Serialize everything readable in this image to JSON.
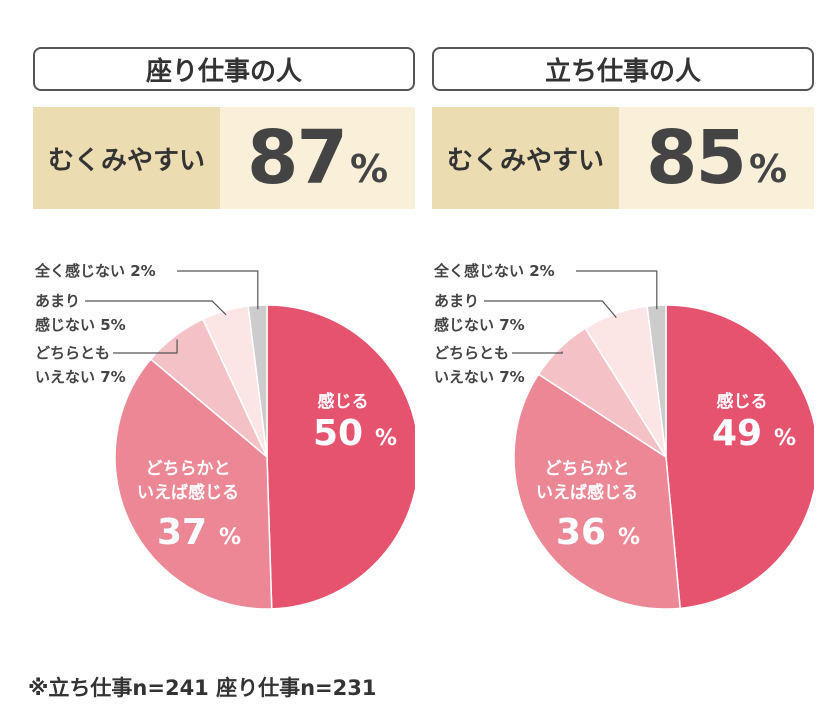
{
  "note": "※立ち仕事n=241 座り仕事n=231",
  "chart_data": [
    {
      "type": "pie",
      "title": "座り仕事の人",
      "stat_label": "むくみやすい",
      "stat_value": "87",
      "stat_unit": "%",
      "slices": [
        {
          "label": "感じる",
          "value": 50,
          "color": "#e5536f",
          "label_inside": true
        },
        {
          "label": "どちらかといえば感じる",
          "value": 37,
          "color": "#ec8795",
          "label_inside": true
        },
        {
          "label": "どちらともいえない",
          "value": 7,
          "color": "#f4c2c6",
          "label_inside": false
        },
        {
          "label": "あまり感じない",
          "value": 5,
          "color": "#fbe5e5",
          "label_inside": false
        },
        {
          "label": "全く感じない",
          "value": 2,
          "color": "#cccccc",
          "label_inside": false
        }
      ],
      "labels": {
        "s0": [
          "感じる",
          "50",
          "%"
        ],
        "s1": [
          "どちらかと",
          "いえば感じる",
          "37",
          "%"
        ],
        "s2": [
          "どちらとも",
          "いえない 7%"
        ],
        "s3": [
          "あまり",
          "感じない 5%"
        ],
        "s4": [
          "全く感じない 2%"
        ]
      }
    },
    {
      "type": "pie",
      "title": "立ち仕事の人",
      "stat_label": "むくみやすい",
      "stat_value": "85",
      "stat_unit": "%",
      "slices": [
        {
          "label": "感じる",
          "value": 49,
          "color": "#e5536f",
          "label_inside": true
        },
        {
          "label": "どちらかといえば感じる",
          "value": 36,
          "color": "#ec8795",
          "label_inside": true
        },
        {
          "label": "どちらともいえない",
          "value": 7,
          "color": "#f4c2c6",
          "label_inside": false
        },
        {
          "label": "あまり感じない",
          "value": 7,
          "color": "#fbe5e5",
          "label_inside": false
        },
        {
          "label": "全く感じない",
          "value": 2,
          "color": "#cccccc",
          "label_inside": false
        }
      ],
      "labels": {
        "s0": [
          "感じる",
          "49",
          "%"
        ],
        "s1": [
          "どちらかと",
          "いえば感じる",
          "36",
          "%"
        ],
        "s2": [
          "どちらとも",
          "いえない 7%"
        ],
        "s3": [
          "あまり",
          "感じない 7%"
        ],
        "s4": [
          "全く感じない 2%"
        ]
      }
    }
  ]
}
